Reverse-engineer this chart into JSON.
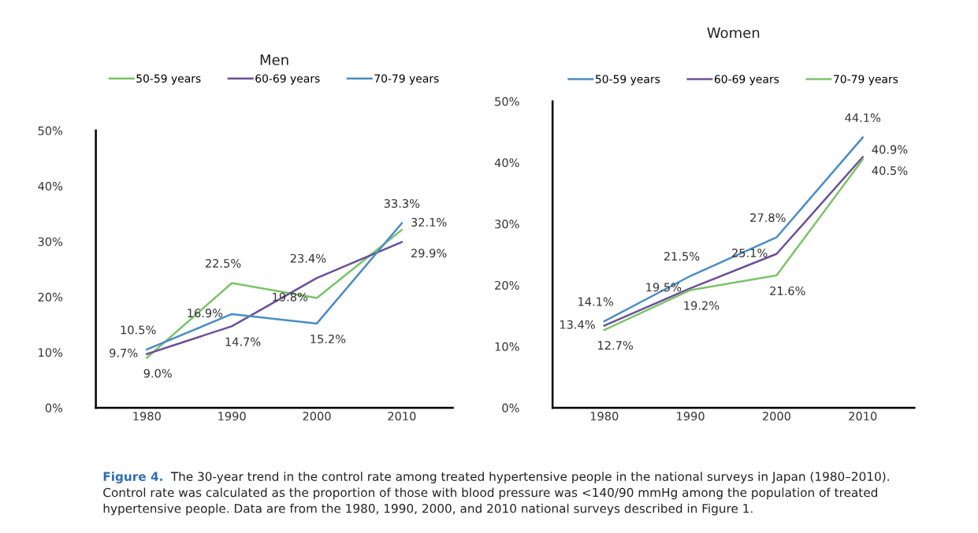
{
  "chart_data": [
    {
      "type": "line",
      "title": "Men",
      "categories": [
        "1980",
        "1990",
        "2000",
        "2010"
      ],
      "ylim": [
        0,
        50
      ],
      "yticks": [
        {
          "value": 0,
          "label": "0%"
        },
        {
          "value": 10,
          "label": "10%"
        },
        {
          "value": 20,
          "label": "20%"
        },
        {
          "value": 30,
          "label": "30%"
        },
        {
          "value": 40,
          "label": "40%"
        },
        {
          "value": 50,
          "label": "50%"
        }
      ],
      "legend": "top",
      "grid": false,
      "marker": "none",
      "line_style": "solid",
      "series": [
        {
          "name": "50-59 years",
          "color": "#7cc36a",
          "values": [
            9.0,
            22.5,
            19.8,
            32.1
          ],
          "value_labels": [
            "9.0%",
            "22.5%",
            "19.8%",
            "32.1%"
          ]
        },
        {
          "name": "60-69 years",
          "color": "#6a509a",
          "values": [
            9.7,
            14.7,
            23.4,
            29.9
          ],
          "value_labels": [
            "9.7%",
            "14.7%",
            "23.4%",
            "29.9%"
          ]
        },
        {
          "name": "70-79 years",
          "color": "#4a8cc4",
          "values": [
            10.5,
            16.9,
            15.2,
            33.3
          ],
          "value_labels": [
            "10.5%",
            "16.9%",
            "15.2%",
            "33.3%"
          ]
        }
      ],
      "annotations": [
        "Figure 4.",
        "The 30-year trend in the control rate among treated hypertensive people in the national surveys in Japan (1980–2010).\nControl rate was calculated as the proportion of those with blood pressure was <140/90 mmHg among the population of treated\nhypertensive people. Data are from the 1980, 1990, 2000, and 2010 national surveys described in Figure 1."
      ]
    },
    {
      "type": "line",
      "title": "Women",
      "categories": [
        "1980",
        "1990",
        "2000",
        "2010"
      ],
      "ylim": [
        0,
        50
      ],
      "yticks": [
        {
          "value": 0,
          "label": "0%"
        },
        {
          "value": 10,
          "label": "10%"
        },
        {
          "value": 20,
          "label": "20%"
        },
        {
          "value": 30,
          "label": "30%"
        },
        {
          "value": 40,
          "label": "40%"
        },
        {
          "value": 50,
          "label": "50%"
        }
      ],
      "legend": "top",
      "grid": false,
      "marker": "none",
      "line_style": "solid",
      "series": [
        {
          "name": "50-59 years",
          "color": "#4a8cc4",
          "values": [
            14.1,
            21.5,
            27.8,
            44.1
          ],
          "value_labels": [
            "14.1%",
            "21.5%",
            "27.8%",
            "44.1%"
          ]
        },
        {
          "name": "60-69 years",
          "color": "#6a509a",
          "values": [
            13.4,
            19.5,
            25.1,
            40.9
          ],
          "value_labels": [
            "13.4%",
            "19.5%",
            "25.1%",
            "40.9%"
          ]
        },
        {
          "name": "70-79 years",
          "color": "#7cc36a",
          "values": [
            12.7,
            19.2,
            21.6,
            40.5
          ],
          "value_labels": [
            "12.7%",
            "19.2%",
            "21.6%",
            "40.5%"
          ]
        }
      ]
    }
  ]
}
